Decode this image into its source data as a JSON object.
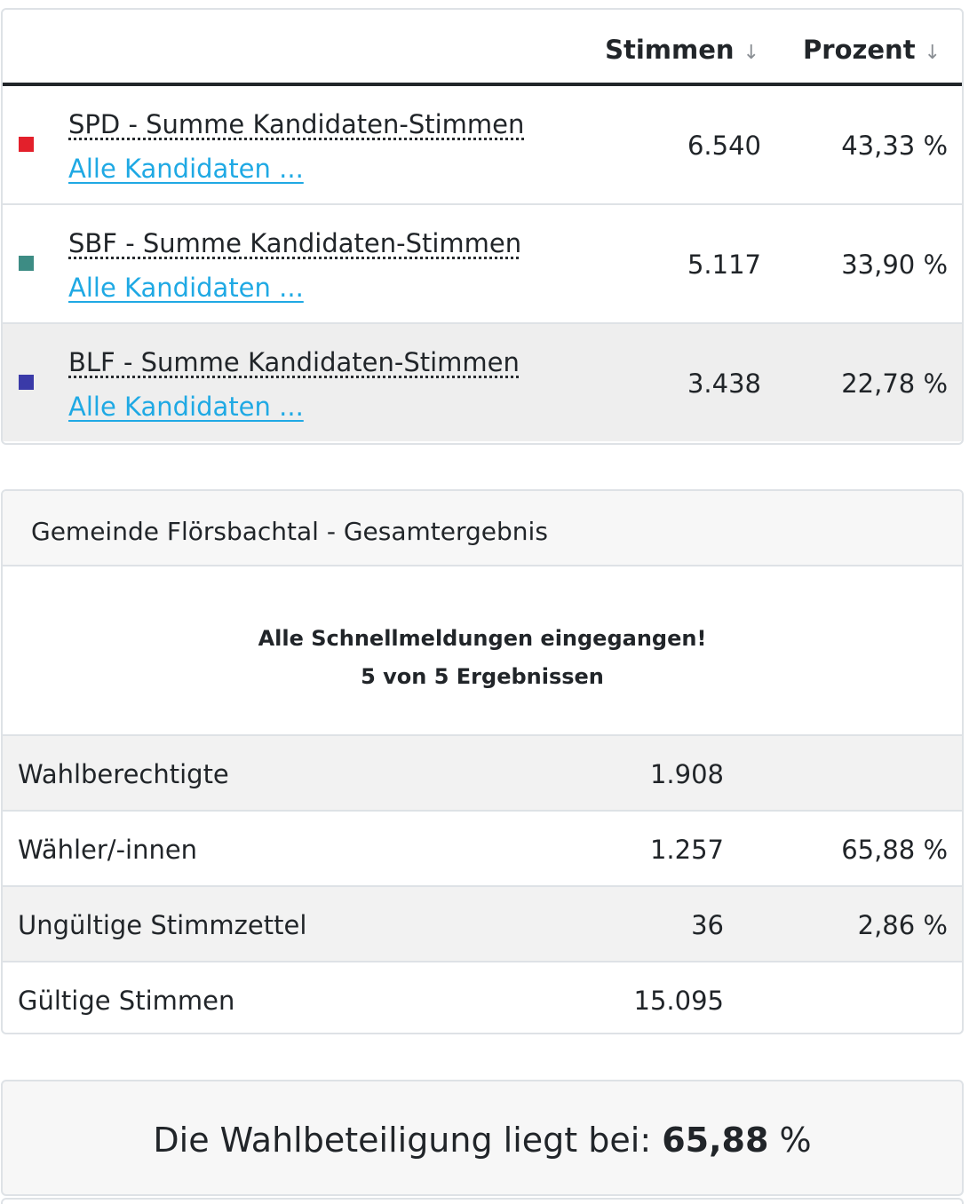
{
  "results_table": {
    "columns": {
      "votes": "Stimmen",
      "percent": "Prozent",
      "sort_glyph": "↓"
    },
    "rows": [
      {
        "name": "SPD - Summe Kandidaten-Stimmen",
        "link": "Alle Kandidaten ...",
        "votes": "6.540",
        "percent": "43,33 %",
        "color": "#e3202b"
      },
      {
        "name": "SBF - Summe Kandidaten-Stimmen",
        "link": "Alle Kandidaten ...",
        "votes": "5.117",
        "percent": "33,90 %",
        "color": "#3d8c84"
      },
      {
        "name": "BLF - Summe Kandidaten-Stimmen",
        "link": "Alle Kandidaten ...",
        "votes": "3.438",
        "percent": "22,78 %",
        "color": "#3a3aa8"
      }
    ]
  },
  "summary": {
    "title": "Gemeinde Flörsbachtal - Gesamtergebnis",
    "status_line1": "Alle Schnellmeldungen eingegangen!",
    "status_line2": "5 von 5 Ergebnissen",
    "stats": [
      {
        "label": "Wahlberechtigte",
        "value": "1.908",
        "percent": ""
      },
      {
        "label": "Wähler/-innen",
        "value": "1.257",
        "percent": "65,88 %"
      },
      {
        "label": "Ungültige Stimmzettel",
        "value": "36",
        "percent": "2,86 %"
      },
      {
        "label": "Gültige Stimmen",
        "value": "15.095",
        "percent": ""
      }
    ]
  },
  "turnout": {
    "prefix": "Die Wahlbeteiligung liegt bei: ",
    "value": "65,88",
    "suffix": " %"
  }
}
